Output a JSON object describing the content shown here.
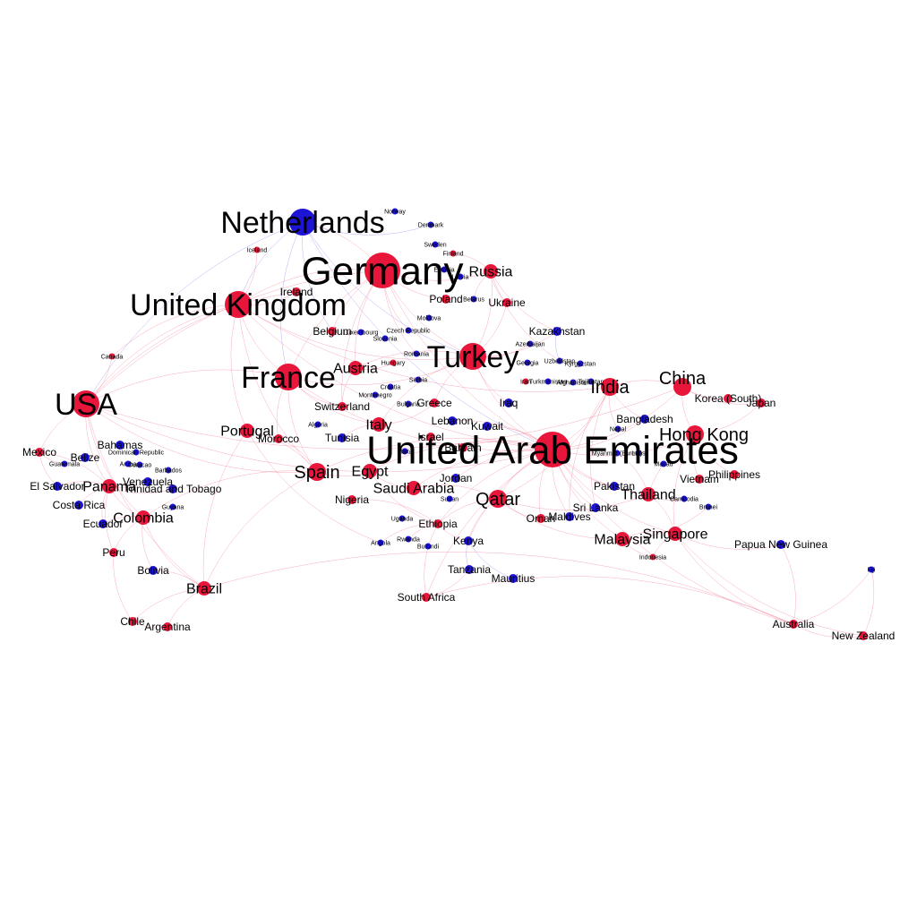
{
  "colors": {
    "red_node": "#e8163a",
    "blue_node": "#1d14d6",
    "red_edge": "#f0587a",
    "blue_edge": "#6a62e8",
    "background": "#ffffff"
  },
  "nodes": [
    {
      "id": "netherlands",
      "label": "Netherlands",
      "color": "blue",
      "weight": 5
    },
    {
      "id": "germany",
      "label": "Germany",
      "color": "red",
      "weight": 6
    },
    {
      "id": "uk",
      "label": "United Kingdom",
      "color": "red",
      "weight": 5
    },
    {
      "id": "france",
      "label": "France",
      "color": "red",
      "weight": 5
    },
    {
      "id": "usa",
      "label": "USA",
      "color": "red",
      "weight": 5
    },
    {
      "id": "turkey",
      "label": "Turkey",
      "color": "red",
      "weight": 5
    },
    {
      "id": "uae",
      "label": "United Arab Emirates",
      "color": "red",
      "weight": 6
    },
    {
      "id": "china",
      "label": "China",
      "color": "red",
      "weight": 3
    },
    {
      "id": "hongkong",
      "label": "Hong Kong",
      "color": "red",
      "weight": 3
    },
    {
      "id": "india",
      "label": "India",
      "color": "red",
      "weight": 3
    },
    {
      "id": "qatar",
      "label": "Qatar",
      "color": "red",
      "weight": 3
    },
    {
      "id": "spain",
      "label": "Spain",
      "color": "red",
      "weight": 3
    },
    {
      "id": "russia",
      "label": "Russia",
      "color": "red",
      "weight": 2
    },
    {
      "id": "portugal",
      "label": "Portugal",
      "color": "red",
      "weight": 2
    },
    {
      "id": "italy",
      "label": "Italy",
      "color": "red",
      "weight": 2
    },
    {
      "id": "austria",
      "label": "Austria",
      "color": "red",
      "weight": 2
    },
    {
      "id": "saudi",
      "label": "Saudi Arabia",
      "color": "red",
      "weight": 2
    },
    {
      "id": "egypt",
      "label": "Egypt",
      "color": "red",
      "weight": 2
    },
    {
      "id": "panama",
      "label": "Panama",
      "color": "red",
      "weight": 2
    },
    {
      "id": "colombia",
      "label": "Colombia",
      "color": "red",
      "weight": 2
    },
    {
      "id": "brazil",
      "label": "Brazil",
      "color": "red",
      "weight": 2
    },
    {
      "id": "thailand",
      "label": "Thailand",
      "color": "red",
      "weight": 2
    },
    {
      "id": "singapore",
      "label": "Singapore",
      "color": "red",
      "weight": 2
    },
    {
      "id": "malaysia",
      "label": "Malaysia",
      "color": "red",
      "weight": 2
    },
    {
      "id": "kazakhstan",
      "label": "Kazakhstan",
      "color": "blue",
      "weight": 1
    },
    {
      "id": "ireland",
      "label": "Ireland",
      "color": "red",
      "weight": 1
    },
    {
      "id": "belgium",
      "label": "Belgium",
      "color": "red",
      "weight": 1
    },
    {
      "id": "switzerland",
      "label": "Switzerland",
      "color": "red",
      "weight": 1
    },
    {
      "id": "mexico",
      "label": "Mexico",
      "color": "red",
      "weight": 1
    },
    {
      "id": "elsalvador",
      "label": "El Salvador",
      "color": "blue",
      "weight": 1
    },
    {
      "id": "costarica",
      "label": "Costa Rica",
      "color": "blue",
      "weight": 1
    },
    {
      "id": "ecuador",
      "label": "Ecuador",
      "color": "blue",
      "weight": 1
    },
    {
      "id": "peru",
      "label": "Peru",
      "color": "red",
      "weight": 1
    },
    {
      "id": "chile",
      "label": "Chile",
      "color": "red",
      "weight": 1
    },
    {
      "id": "argentina",
      "label": "Argentina",
      "color": "red",
      "weight": 1
    },
    {
      "id": "southafrica",
      "label": "South Africa",
      "color": "red",
      "weight": 1
    },
    {
      "id": "ethiopia",
      "label": "Ethiopia",
      "color": "red",
      "weight": 1
    },
    {
      "id": "kenya",
      "label": "Kenya",
      "color": "blue",
      "weight": 1
    },
    {
      "id": "srilanka",
      "label": "Sri Lanka",
      "color": "blue",
      "weight": 1
    },
    {
      "id": "oman",
      "label": "Oman",
      "color": "red",
      "weight": 1
    },
    {
      "id": "kuwait",
      "label": "Kuwait",
      "color": "blue",
      "weight": 1
    },
    {
      "id": "bangladesh",
      "label": "Bangladesh",
      "color": "blue",
      "weight": 1
    },
    {
      "id": "korea",
      "label": "Korea (South)",
      "color": "red",
      "weight": 1
    },
    {
      "id": "japan",
      "label": "Japan",
      "color": "red",
      "weight": 1
    },
    {
      "id": "philippines",
      "label": "Philippines",
      "color": "red",
      "weight": 1
    },
    {
      "id": "australia",
      "label": "Australia",
      "color": "red",
      "weight": 1
    },
    {
      "id": "newzealand",
      "label": "New Zealand",
      "color": "red",
      "weight": 1
    },
    {
      "id": "greece",
      "label": "Greece",
      "color": "red",
      "weight": 1
    },
    {
      "id": "tunisia",
      "label": "Tunisia",
      "color": "blue",
      "weight": 1
    },
    {
      "id": "morocco",
      "label": "Morocco",
      "color": "red",
      "weight": 1
    },
    {
      "id": "nigeria",
      "label": "Nigeria",
      "color": "red",
      "weight": 1
    },
    {
      "id": "bahrain",
      "label": "Bahrain",
      "color": "red",
      "weight": 1
    },
    {
      "id": "jordan",
      "label": "Jordan",
      "color": "blue",
      "weight": 1
    },
    {
      "id": "iraq",
      "label": "Iraq",
      "color": "blue",
      "weight": 1
    },
    {
      "id": "ukraine",
      "label": "Ukraine",
      "color": "red",
      "weight": 1
    },
    {
      "id": "poland",
      "label": "Poland",
      "color": "red",
      "weight": 1
    },
    {
      "id": "israel",
      "label": "Israel",
      "color": "red",
      "weight": 1
    },
    {
      "id": "lebanon",
      "label": "Lebanon",
      "color": "blue",
      "weight": 1
    },
    {
      "id": "pakistan",
      "label": "Pakistan",
      "color": "blue",
      "weight": 1
    },
    {
      "id": "tanzania",
      "label": "Tanzania",
      "color": "blue",
      "weight": 1
    },
    {
      "id": "mauritius",
      "label": "Mauritius",
      "color": "blue",
      "weight": 1
    },
    {
      "id": "vietnam",
      "label": "Vietnam",
      "color": "red",
      "weight": 1
    },
    {
      "id": "maldives",
      "label": "Maldives",
      "color": "blue",
      "weight": 1
    },
    {
      "id": "papua",
      "label": "Papua New Guinea",
      "color": "blue",
      "weight": 1
    },
    {
      "id": "bolivia",
      "label": "Bolivia",
      "color": "blue",
      "weight": 1
    },
    {
      "id": "trinidad",
      "label": "Trinidad and Tobago",
      "color": "blue",
      "weight": 1
    },
    {
      "id": "venezuela",
      "label": "Venezuela",
      "color": "blue",
      "weight": 1
    },
    {
      "id": "bahamas",
      "label": "Bahamas",
      "color": "blue",
      "weight": 1
    },
    {
      "id": "belize",
      "label": "Belize",
      "color": "blue",
      "weight": 1
    },
    {
      "id": "guatemala",
      "label": "Guatemala",
      "color": "blue",
      "weight": 0
    },
    {
      "id": "dominican",
      "label": "Dominican Republic",
      "color": "blue",
      "weight": 0
    },
    {
      "id": "canada",
      "label": "Canada",
      "color": "red",
      "weight": 0
    },
    {
      "id": "iceland",
      "label": "Iceland",
      "color": "red",
      "weight": 0
    },
    {
      "id": "norway",
      "label": "Norway",
      "color": "blue",
      "weight": 0
    },
    {
      "id": "denmark",
      "label": "Denmark",
      "color": "blue",
      "weight": 0
    },
    {
      "id": "sweden",
      "label": "Sweden",
      "color": "blue",
      "weight": 0
    },
    {
      "id": "finland",
      "label": "Finland",
      "color": "red",
      "weight": 0
    },
    {
      "id": "estonia",
      "label": "Estonia",
      "color": "blue",
      "weight": 0
    },
    {
      "id": "latvia",
      "label": "Latvia",
      "color": "blue",
      "weight": 0
    },
    {
      "id": "belarus",
      "label": "Belarus",
      "color": "blue",
      "weight": 0
    },
    {
      "id": "moldova",
      "label": "Moldova",
      "color": "blue",
      "weight": 0
    },
    {
      "id": "luxembourg",
      "label": "Luxembourg",
      "color": "blue",
      "weight": 0
    },
    {
      "id": "czech",
      "label": "Czech Republic",
      "color": "blue",
      "weight": 0
    },
    {
      "id": "slovenia",
      "label": "Slovenia",
      "color": "blue",
      "weight": 0
    },
    {
      "id": "romania",
      "label": "Romania",
      "color": "blue",
      "weight": 0
    },
    {
      "id": "hungary",
      "label": "Hungary",
      "color": "red",
      "weight": 0
    },
    {
      "id": "serbia",
      "label": "Serbia",
      "color": "blue",
      "weight": 0
    },
    {
      "id": "croatia",
      "label": "Croatia",
      "color": "blue",
      "weight": 0
    },
    {
      "id": "montenegro",
      "label": "Montenegro",
      "color": "blue",
      "weight": 0
    },
    {
      "id": "bulgaria",
      "label": "Bulgaria",
      "color": "blue",
      "weight": 0
    },
    {
      "id": "algeria",
      "label": "Algeria",
      "color": "blue",
      "weight": 0
    },
    {
      "id": "malta",
      "label": "Malta",
      "color": "blue",
      "weight": 0
    },
    {
      "id": "azerbaijan",
      "label": "Azerbaijan",
      "color": "blue",
      "weight": 0
    },
    {
      "id": "georgia",
      "label": "Georgia",
      "color": "blue",
      "weight": 0
    },
    {
      "id": "uzbekistan",
      "label": "Uzbekistan",
      "color": "blue",
      "weight": 0
    },
    {
      "id": "kyrgyzstan",
      "label": "Kyrgyzstan",
      "color": "blue",
      "weight": 0
    },
    {
      "id": "iran",
      "label": "Iran",
      "color": "red",
      "weight": 0
    },
    {
      "id": "turkmenistan",
      "label": "Turkmenistan",
      "color": "blue",
      "weight": 0
    },
    {
      "id": "afghanistan",
      "label": "Afghanistan",
      "color": "blue",
      "weight": 0
    },
    {
      "id": "tajikistan",
      "label": "Tajikistan",
      "color": "blue",
      "weight": 0
    },
    {
      "id": "nepal",
      "label": "Nepal",
      "color": "blue",
      "weight": 0
    },
    {
      "id": "myanmar",
      "label": "Myanmar (Burma)",
      "color": "blue",
      "weight": 0
    },
    {
      "id": "laos",
      "label": "Laos",
      "color": "blue",
      "weight": 0
    },
    {
      "id": "macau",
      "label": "Macau",
      "color": "blue",
      "weight": 0
    },
    {
      "id": "cambodia",
      "label": "Cambodia",
      "color": "blue",
      "weight": 0
    },
    {
      "id": "brunei",
      "label": "Brunei",
      "color": "blue",
      "weight": 0
    },
    {
      "id": "indonesia",
      "label": "Indonesia",
      "color": "red",
      "weight": 0
    },
    {
      "id": "fiji",
      "label": "Fiji",
      "color": "blue",
      "weight": 0
    },
    {
      "id": "uganda",
      "label": "Uganda",
      "color": "blue",
      "weight": 0
    },
    {
      "id": "sudan",
      "label": "Sudan",
      "color": "blue",
      "weight": 0
    },
    {
      "id": "rwanda",
      "label": "Rwanda",
      "color": "blue",
      "weight": 0
    },
    {
      "id": "burundi",
      "label": "Burundi",
      "color": "blue",
      "weight": 0
    },
    {
      "id": "angola",
      "label": "Angola",
      "color": "blue",
      "weight": 0
    },
    {
      "id": "guyana",
      "label": "Guyana",
      "color": "blue",
      "weight": 0
    },
    {
      "id": "barbados",
      "label": "Barbados",
      "color": "blue",
      "weight": 0
    },
    {
      "id": "curacao",
      "label": "Curacao",
      "color": "blue",
      "weight": 0
    },
    {
      "id": "aruba",
      "label": "Aruba",
      "color": "blue",
      "weight": 0
    }
  ],
  "edges": [
    [
      "germany",
      "netherlands"
    ],
    [
      "germany",
      "uk"
    ],
    [
      "germany",
      "france"
    ],
    [
      "germany",
      "turkey"
    ],
    [
      "germany",
      "uae"
    ],
    [
      "germany",
      "russia"
    ],
    [
      "germany",
      "austria"
    ],
    [
      "germany",
      "usa"
    ],
    [
      "netherlands",
      "uk"
    ],
    [
      "netherlands",
      "france"
    ],
    [
      "netherlands",
      "turkey"
    ],
    [
      "netherlands",
      "uae"
    ],
    [
      "netherlands",
      "usa"
    ],
    [
      "netherlands",
      "belgium"
    ],
    [
      "netherlands",
      "denmark"
    ],
    [
      "uk",
      "france"
    ],
    [
      "uk",
      "usa"
    ],
    [
      "uk",
      "uae"
    ],
    [
      "uk",
      "turkey"
    ],
    [
      "uk",
      "india"
    ],
    [
      "uk",
      "spain"
    ],
    [
      "uk",
      "ireland"
    ],
    [
      "uk",
      "portugal"
    ],
    [
      "france",
      "usa"
    ],
    [
      "france",
      "spain"
    ],
    [
      "france",
      "uae"
    ],
    [
      "france",
      "turkey"
    ],
    [
      "france",
      "italy"
    ],
    [
      "france",
      "morocco"
    ],
    [
      "france",
      "switzerland"
    ],
    [
      "usa",
      "mexico"
    ],
    [
      "usa",
      "panama"
    ],
    [
      "usa",
      "colombia"
    ],
    [
      "usa",
      "brazil"
    ],
    [
      "usa",
      "canada"
    ],
    [
      "usa",
      "uae"
    ],
    [
      "usa",
      "spain"
    ],
    [
      "usa",
      "china"
    ],
    [
      "turkey",
      "uae"
    ],
    [
      "turkey",
      "russia"
    ],
    [
      "turkey",
      "kazakhstan"
    ],
    [
      "turkey",
      "ukraine"
    ],
    [
      "turkey",
      "iraq"
    ],
    [
      "turkey",
      "azerbaijan"
    ],
    [
      "turkey",
      "greece"
    ],
    [
      "turkey",
      "italy"
    ],
    [
      "turkey",
      "austria"
    ],
    [
      "uae",
      "qatar"
    ],
    [
      "uae",
      "india"
    ],
    [
      "uae",
      "china"
    ],
    [
      "uae",
      "hongkong"
    ],
    [
      "uae",
      "saudi"
    ],
    [
      "uae",
      "egypt"
    ],
    [
      "uae",
      "thailand"
    ],
    [
      "uae",
      "singapore"
    ],
    [
      "uae",
      "malaysia"
    ],
    [
      "uae",
      "kenya"
    ],
    [
      "uae",
      "ethiopia"
    ],
    [
      "uae",
      "srilanka"
    ],
    [
      "uae",
      "pakistan"
    ],
    [
      "uae",
      "oman"
    ],
    [
      "uae",
      "kuwait"
    ],
    [
      "uae",
      "bangladesh"
    ],
    [
      "uae",
      "australia"
    ],
    [
      "uae",
      "southafrica"
    ],
    [
      "uae",
      "jordan"
    ],
    [
      "uae",
      "lebanon"
    ],
    [
      "uae",
      "bahrain"
    ],
    [
      "uae",
      "spain"
    ],
    [
      "uae",
      "maldives"
    ],
    [
      "qatar",
      "india"
    ],
    [
      "qatar",
      "saudi"
    ],
    [
      "qatar",
      "thailand"
    ],
    [
      "qatar",
      "malaysia"
    ],
    [
      "qatar",
      "ethiopia"
    ],
    [
      "qatar",
      "kenya"
    ],
    [
      "qatar",
      "sri lanka"
    ],
    [
      "qatar",
      "oman"
    ],
    [
      "china",
      "hongkong"
    ],
    [
      "china",
      "korea"
    ],
    [
      "china",
      "japan"
    ],
    [
      "china",
      "india"
    ],
    [
      "hongkong",
      "japan"
    ],
    [
      "hongkong",
      "philippines"
    ],
    [
      "hongkong",
      "vietnam"
    ],
    [
      "hongkong",
      "thailand"
    ],
    [
      "hongkong",
      "singapore"
    ],
    [
      "singapore",
      "australia"
    ],
    [
      "singapore",
      "malaysia"
    ],
    [
      "singapore",
      "thailand"
    ],
    [
      "singapore",
      "indonesia"
    ],
    [
      "singapore",
      "papua"
    ],
    [
      "singapore",
      "newzealand"
    ],
    [
      "australia",
      "newzealand"
    ],
    [
      "australia",
      "fiji"
    ],
    [
      "australia",
      "papua"
    ],
    [
      "newzealand",
      "fiji"
    ],
    [
      "australia",
      "brazil"
    ],
    [
      "australia",
      "southafrica"
    ],
    [
      "panama",
      "colombia"
    ],
    [
      "panama",
      "costarica"
    ],
    [
      "panama",
      "elsalvador"
    ],
    [
      "panama",
      "ecuador"
    ],
    [
      "panama",
      "peru"
    ],
    [
      "panama",
      "mexico"
    ],
    [
      "panama",
      "venezuela"
    ],
    [
      "panama",
      "trinidad"
    ],
    [
      "colombia",
      "peru"
    ],
    [
      "colombia",
      "brazil"
    ],
    [
      "colombia",
      "ecuador"
    ],
    [
      "colombia",
      "bolivia"
    ],
    [
      "brazil",
      "argentina"
    ],
    [
      "brazil",
      "chile"
    ],
    [
      "brazil",
      "bolivia"
    ],
    [
      "chile",
      "argentina"
    ],
    [
      "peru",
      "chile"
    ],
    [
      "mexico",
      "elsalvador"
    ],
    [
      "mexico",
      "guatemala"
    ],
    [
      "spain",
      "portugal"
    ],
    [
      "spain",
      "brazil"
    ],
    [
      "spain",
      "colombia"
    ],
    [
      "spain",
      "morocco"
    ],
    [
      "spain",
      "egypt"
    ],
    [
      "portugal",
      "brazil"
    ],
    [
      "portugal",
      "angola"
    ],
    [
      "egypt",
      "saudi"
    ],
    [
      "egypt",
      "ethiopia"
    ],
    [
      "ethiopia",
      "kenya"
    ],
    [
      "kenya",
      "tanzania"
    ],
    [
      "ethiopia",
      "southafrica"
    ],
    [
      "ethiopia",
      "rwanda"
    ],
    [
      "southafrica",
      "tanzania"
    ],
    [
      "kenya",
      "mauritius"
    ],
    [
      "ethiopia",
      "nigeria"
    ],
    [
      "ethiopia",
      "angola"
    ],
    [
      "india",
      "bangladesh"
    ],
    [
      "india",
      "srilanka"
    ],
    [
      "india",
      "nepal"
    ],
    [
      "india",
      "maldives"
    ],
    [
      "thailand",
      "cambodia"
    ],
    [
      "thailand",
      "myanmar"
    ],
    [
      "malaysia",
      "brunei"
    ],
    [
      "malaysia",
      "indonesia"
    ],
    [
      "russia",
      "ukraine"
    ],
    [
      "russia",
      "kazakhstan"
    ],
    [
      "russia",
      "uzbekistan"
    ],
    [
      "russia",
      "belarus"
    ],
    [
      "russia",
      "finland"
    ],
    [
      "kazakhstan",
      "uzbekistan"
    ],
    [
      "austria",
      "hungary"
    ],
    [
      "austria",
      "switzerland"
    ],
    [
      "italy",
      "tunisia"
    ],
    [
      "italy",
      "greece"
    ],
    [
      "germany",
      "poland"
    ],
    [
      "germany",
      "czech"
    ],
    [
      "germany",
      "romania"
    ],
    [
      "germany",
      "switzerland"
    ],
    [
      "germany",
      "belgium"
    ],
    [
      "uk",
      "canada"
    ],
    [
      "uk",
      "iceland"
    ],
    [
      "ireland",
      "usa"
    ]
  ]
}
